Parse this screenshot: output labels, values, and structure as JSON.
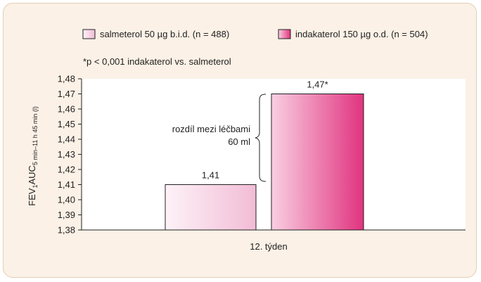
{
  "chart_data": {
    "type": "bar",
    "categories": [
      "12. týden"
    ],
    "series": [
      {
        "name": "salmeterol 50 µg b.i.d. (n = 488)",
        "values": [
          1.41
        ],
        "label": "1,41"
      },
      {
        "name": "indakaterol 150 µg o.d. (n = 504)",
        "values": [
          1.47
        ],
        "label": "1,47*"
      }
    ],
    "ylim": [
      1.38,
      1.48
    ],
    "yticks": [
      "1,38",
      "1,39",
      "1,40",
      "1,41",
      "1,42",
      "1,43",
      "1,44",
      "1,45",
      "1,46",
      "1,47",
      "1,48"
    ],
    "ylabel": {
      "main": "FEV",
      "sub1": "1",
      "main2": "AUC",
      "sub2": "5 min–11 h 45 min (l)"
    },
    "xlabel": "12. týden",
    "footnote": "*p < 0,001 indakaterol vs. salmeterol",
    "annotation": {
      "line1": "rozdíl mezi léčbami",
      "line2": "60 ml"
    },
    "legend_position": "top-right",
    "colors": {
      "salmeterol_light": "#fdf2f7",
      "salmeterol_dark": "#f2bcd6",
      "indakaterol_light": "#f9cfe2",
      "indakaterol_dark": "#e1337f",
      "background": "#fbf1e6",
      "plot_background": "#ffffff"
    }
  }
}
